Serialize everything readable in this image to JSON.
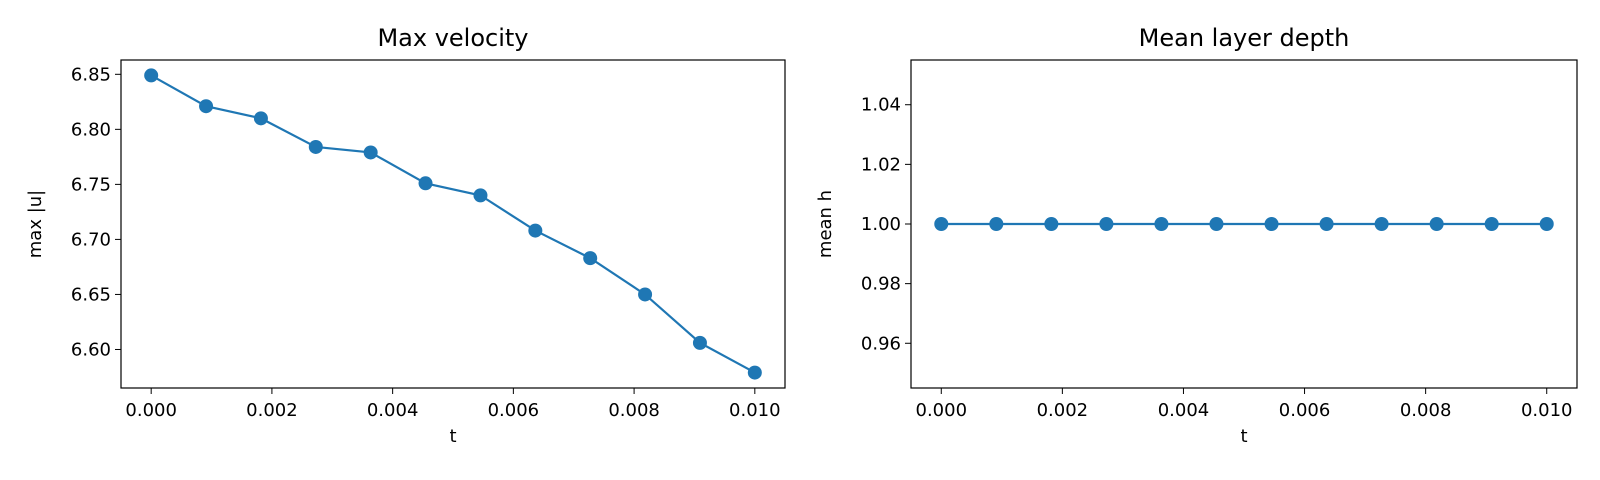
{
  "chart_data": [
    {
      "type": "line",
      "title": "Max velocity",
      "xlabel": "t",
      "ylabel": "max |u|",
      "xlim": [
        -0.0005,
        0.0105
      ],
      "ylim": [
        6.565,
        6.863
      ],
      "xticks": [
        0.0,
        0.002,
        0.004,
        0.006,
        0.008,
        0.01
      ],
      "xtick_labels": [
        "0.000",
        "0.002",
        "0.004",
        "0.006",
        "0.008",
        "0.010"
      ],
      "yticks": [
        6.6,
        6.65,
        6.7,
        6.75,
        6.8,
        6.85
      ],
      "ytick_labels": [
        "6.60",
        "6.65",
        "6.70",
        "6.75",
        "6.80",
        "6.85"
      ],
      "grid": false,
      "color": "#1f77b4",
      "series": [
        {
          "x": [
            0.0,
            0.000909,
            0.001818,
            0.002727,
            0.003636,
            0.004545,
            0.005455,
            0.006364,
            0.007273,
            0.008182,
            0.009091,
            0.01
          ],
          "y": [
            6.849,
            6.821,
            6.81,
            6.784,
            6.779,
            6.751,
            6.74,
            6.708,
            6.683,
            6.65,
            6.606,
            6.579
          ]
        }
      ]
    },
    {
      "type": "line",
      "title": "Mean layer depth",
      "xlabel": "t",
      "ylabel": "mean h",
      "xlim": [
        -0.0005,
        0.0105
      ],
      "ylim": [
        0.945,
        1.055
      ],
      "xticks": [
        0.0,
        0.002,
        0.004,
        0.006,
        0.008,
        0.01
      ],
      "xtick_labels": [
        "0.000",
        "0.002",
        "0.004",
        "0.006",
        "0.008",
        "0.010"
      ],
      "yticks": [
        0.96,
        0.98,
        1.0,
        1.02,
        1.04
      ],
      "ytick_labels": [
        "0.96",
        "0.98",
        "1.00",
        "1.02",
        "1.04"
      ],
      "grid": false,
      "color": "#1f77b4",
      "series": [
        {
          "x": [
            0.0,
            0.000909,
            0.001818,
            0.002727,
            0.003636,
            0.004545,
            0.005455,
            0.006364,
            0.007273,
            0.008182,
            0.009091,
            0.01
          ],
          "y": [
            1.0,
            1.0,
            1.0,
            1.0,
            1.0,
            1.0,
            1.0,
            1.0,
            1.0,
            1.0,
            1.0,
            1.0
          ]
        }
      ]
    }
  ]
}
